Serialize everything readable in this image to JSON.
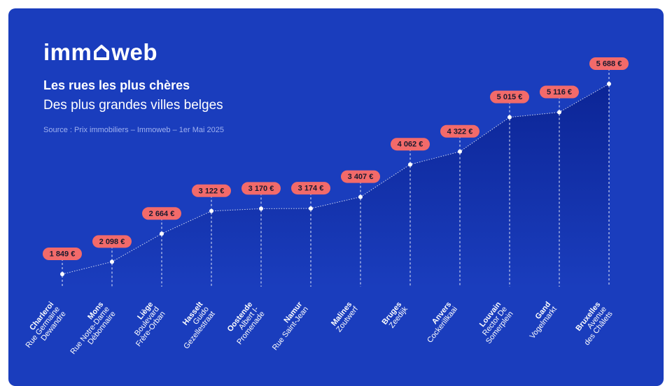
{
  "brand": {
    "logo_prefix": "imm",
    "logo_suffix": "web"
  },
  "header": {
    "title": "Les rues les plus chères",
    "subtitle": "Des plus grandes villes belges",
    "source": "Source : Prix immobiliers – Immoweb – 1er Mai 2025"
  },
  "colors": {
    "background": "#1a3dbd",
    "area_top": "#0c2596",
    "area_bottom": "#1a3dbd",
    "badge": "#f26a6a",
    "line": "#ffffff"
  },
  "chart_data": {
    "type": "area",
    "title": "Les rues les plus chères",
    "unit": "€",
    "grid": false,
    "legend": "none",
    "ylim": [
      0,
      6500
    ],
    "categories": [
      {
        "city": "Charleroi",
        "street": [
          "Rue Germaine",
          "Dewandre"
        ],
        "value": 1849,
        "label": "1 849 €"
      },
      {
        "city": "Mons",
        "street": [
          "Rue Notre-Dame",
          "Débonnaire"
        ],
        "value": 2098,
        "label": "2 098 €"
      },
      {
        "city": "Liège",
        "street": [
          "Boulevard",
          "Frère-Orban"
        ],
        "value": 2664,
        "label": "2 664 €"
      },
      {
        "city": "Hasselt",
        "street": [
          "Guido",
          "Gezellestraat"
        ],
        "value": 3122,
        "label": "3 122 €"
      },
      {
        "city": "Oostende",
        "street": [
          "Albert I-",
          "Promenade"
        ],
        "value": 3170,
        "label": "3 170 €"
      },
      {
        "city": "Namur",
        "street": [
          "Rue Saint-Jean"
        ],
        "value": 3174,
        "label": "3 174 €"
      },
      {
        "city": "Malines",
        "street": [
          "Zoutwerf"
        ],
        "value": 3407,
        "label": "3 407 €"
      },
      {
        "city": "Bruges",
        "street": [
          "Zeedijk"
        ],
        "value": 4062,
        "label": "4 062 €"
      },
      {
        "city": "Anvers",
        "street": [
          "Cockerillkaai"
        ],
        "value": 4322,
        "label": "4 322 €"
      },
      {
        "city": "Louvain",
        "street": [
          "Rector De",
          "Somerplein"
        ],
        "value": 5015,
        "label": "5 015 €"
      },
      {
        "city": "Gand",
        "street": [
          "Vogelmarkt"
        ],
        "value": 5116,
        "label": "5 116 €"
      },
      {
        "city": "Bruxelles",
        "street": [
          "Avenue",
          "des Châlets"
        ],
        "value": 5688,
        "label": "5 688 €"
      }
    ]
  }
}
